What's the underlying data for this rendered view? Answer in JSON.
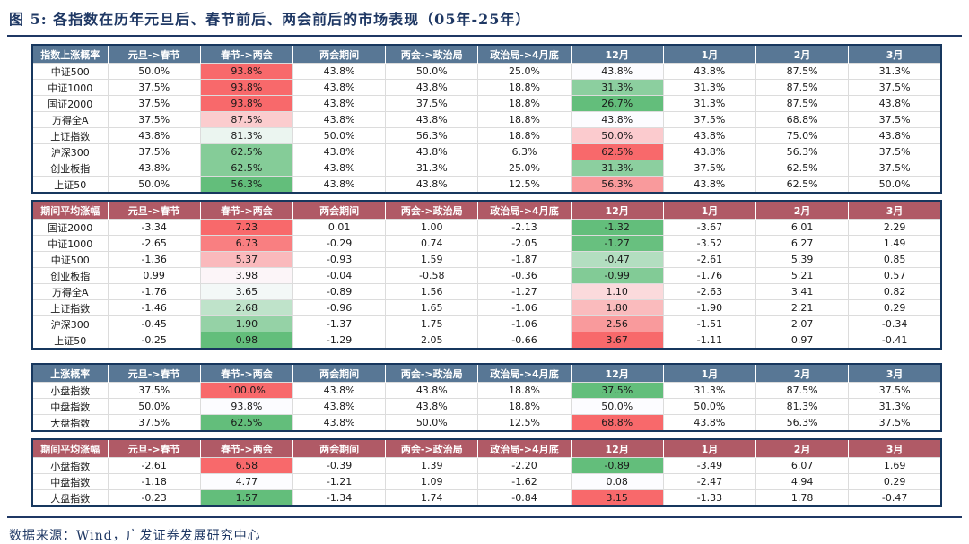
{
  "title": "图 5: 各指数在历年元旦后、春节前后、两会前后的市场表现（05年-25年）",
  "source": "数据来源：Wind，广发证券发展研究中心",
  "colors": {
    "header_blue": "#587795",
    "header_red": "#B05A66",
    "border_navy": "#17375E",
    "title_navy": "#1F3864",
    "scale_red": "#F8696B",
    "scale_mid": "#FCFCFF",
    "scale_green": "#63BE7B"
  },
  "chart_data": [
    {
      "type": "table",
      "name": "index-rise-probability",
      "theme": "blue",
      "columns": [
        "指数上涨概率",
        "元旦->春节",
        "春节->两会",
        "两会期间",
        "两会->政治局",
        "政治局->4月底",
        "12月",
        "1月",
        "2月",
        "3月"
      ],
      "heat_columns": [
        1,
        5
      ],
      "rows": [
        {
          "label": "中证500",
          "values": [
            "50.0%",
            "93.8%",
            "43.8%",
            "50.0%",
            "25.0%",
            "43.8%",
            "43.8%",
            "87.5%",
            "31.3%"
          ]
        },
        {
          "label": "中证1000",
          "values": [
            "37.5%",
            "93.8%",
            "43.8%",
            "43.8%",
            "18.8%",
            "31.3%",
            "31.3%",
            "87.5%",
            "37.5%"
          ]
        },
        {
          "label": "国证2000",
          "values": [
            "37.5%",
            "93.8%",
            "43.8%",
            "37.5%",
            "18.8%",
            "26.7%",
            "31.3%",
            "87.5%",
            "43.8%"
          ]
        },
        {
          "label": "万得全A",
          "values": [
            "37.5%",
            "87.5%",
            "43.8%",
            "43.8%",
            "18.8%",
            "43.8%",
            "37.5%",
            "68.8%",
            "37.5%"
          ]
        },
        {
          "label": "上证指数",
          "values": [
            "43.8%",
            "81.3%",
            "50.0%",
            "56.3%",
            "18.8%",
            "50.0%",
            "43.8%",
            "75.0%",
            "43.8%"
          ]
        },
        {
          "label": "沪深300",
          "values": [
            "37.5%",
            "62.5%",
            "43.8%",
            "43.8%",
            "6.3%",
            "62.5%",
            "43.8%",
            "56.3%",
            "37.5%"
          ]
        },
        {
          "label": "创业板指",
          "values": [
            "43.8%",
            "62.5%",
            "43.8%",
            "31.3%",
            "25.0%",
            "31.3%",
            "37.5%",
            "62.5%",
            "37.5%"
          ]
        },
        {
          "label": "上证50",
          "values": [
            "50.0%",
            "56.3%",
            "43.8%",
            "43.8%",
            "12.5%",
            "56.3%",
            "43.8%",
            "62.5%",
            "50.0%"
          ]
        }
      ]
    },
    {
      "type": "table",
      "name": "index-period-average-change",
      "theme": "red",
      "columns": [
        "期间平均涨幅",
        "元旦->春节",
        "春节->两会",
        "两会期间",
        "两会->政治局",
        "政治局->4月底",
        "12月",
        "1月",
        "2月",
        "3月"
      ],
      "heat_columns": [
        1,
        5
      ],
      "rows": [
        {
          "label": "国证2000",
          "values": [
            "-3.34",
            "7.23",
            "0.01",
            "1.00",
            "-2.13",
            "-1.32",
            "-3.67",
            "6.01",
            "2.29"
          ]
        },
        {
          "label": "中证1000",
          "values": [
            "-2.65",
            "6.73",
            "-0.29",
            "0.74",
            "-2.05",
            "-1.27",
            "-3.52",
            "6.27",
            "1.49"
          ]
        },
        {
          "label": "中证500",
          "values": [
            "-1.36",
            "5.37",
            "-0.93",
            "1.59",
            "-1.87",
            "-0.47",
            "-2.61",
            "5.39",
            "0.85"
          ]
        },
        {
          "label": "创业板指",
          "values": [
            "0.99",
            "3.98",
            "-0.04",
            "-0.58",
            "-0.36",
            "-0.99",
            "-1.76",
            "5.21",
            "0.57"
          ]
        },
        {
          "label": "万得全A",
          "values": [
            "-1.76",
            "3.65",
            "-0.89",
            "1.56",
            "-1.27",
            "1.10",
            "-2.63",
            "3.41",
            "0.82"
          ]
        },
        {
          "label": "上证指数",
          "values": [
            "-1.46",
            "2.68",
            "-0.96",
            "1.65",
            "-1.06",
            "1.80",
            "-1.90",
            "2.21",
            "0.29"
          ]
        },
        {
          "label": "沪深300",
          "values": [
            "-0.45",
            "1.90",
            "-1.37",
            "1.75",
            "-1.06",
            "2.56",
            "-1.51",
            "2.07",
            "-0.34"
          ]
        },
        {
          "label": "上证50",
          "values": [
            "-0.25",
            "0.98",
            "-1.29",
            "2.05",
            "-0.66",
            "3.67",
            "-1.11",
            "0.97",
            "-0.41"
          ]
        }
      ]
    },
    {
      "type": "table",
      "name": "cap-rise-probability",
      "theme": "blue",
      "columns": [
        "上涨概率",
        "元旦->春节",
        "春节->两会",
        "两会期间",
        "两会->政治局",
        "政治局->4月底",
        "12月",
        "1月",
        "2月",
        "3月"
      ],
      "heat_columns": [
        1,
        5
      ],
      "rows": [
        {
          "label": "小盘指数",
          "values": [
            "37.5%",
            "100.0%",
            "43.8%",
            "43.8%",
            "18.8%",
            "37.5%",
            "31.3%",
            "87.5%",
            "37.5%"
          ]
        },
        {
          "label": "中盘指数",
          "values": [
            "50.0%",
            "93.8%",
            "43.8%",
            "43.8%",
            "18.8%",
            "50.0%",
            "50.0%",
            "81.3%",
            "31.3%"
          ]
        },
        {
          "label": "大盘指数",
          "values": [
            "37.5%",
            "62.5%",
            "43.8%",
            "50.0%",
            "12.5%",
            "68.8%",
            "43.8%",
            "56.3%",
            "37.5%"
          ]
        }
      ]
    },
    {
      "type": "table",
      "name": "cap-period-average-change",
      "theme": "red",
      "columns": [
        "期间平均涨幅",
        "元旦->春节",
        "春节->两会",
        "两会期间",
        "两会->政治局",
        "政治局->4月底",
        "12月",
        "1月",
        "2月",
        "3月"
      ],
      "heat_columns": [
        1,
        5
      ],
      "rows": [
        {
          "label": "小盘指数",
          "values": [
            "-2.61",
            "6.58",
            "-0.39",
            "1.39",
            "-2.20",
            "-0.89",
            "-3.49",
            "6.07",
            "1.69"
          ]
        },
        {
          "label": "中盘指数",
          "values": [
            "-1.18",
            "4.77",
            "-1.21",
            "1.09",
            "-1.62",
            "0.08",
            "-2.47",
            "4.94",
            "0.29"
          ]
        },
        {
          "label": "大盘指数",
          "values": [
            "-0.23",
            "1.57",
            "-1.34",
            "1.74",
            "-0.84",
            "3.15",
            "-1.33",
            "1.78",
            "-0.47"
          ]
        }
      ]
    }
  ]
}
